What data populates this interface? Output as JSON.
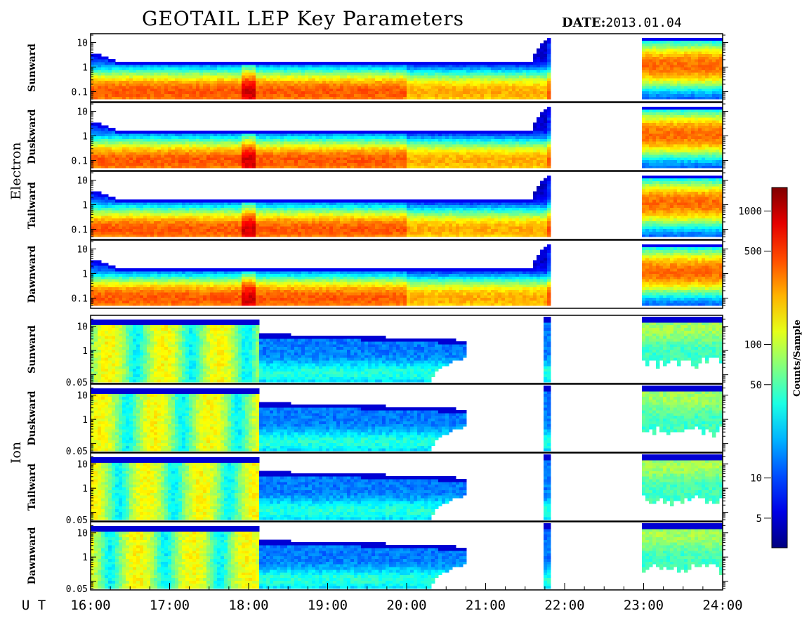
{
  "title": "GEOTAIL LEP Key Parameters",
  "date_label": "DATE:",
  "date_value": "2013.01.04",
  "chart_data": {
    "type": "heatmap",
    "x_axis": {
      "label": "U T",
      "range_hours": [
        16,
        24
      ],
      "ticks": [
        16,
        17,
        18,
        19,
        20,
        21,
        22,
        23,
        24
      ],
      "tick_labels": [
        "16:00",
        "17:00",
        "18:00",
        "19:00",
        "20:00",
        "21:00",
        "22:00",
        "23:00",
        "24:00"
      ]
    },
    "y_scale": "log",
    "groups": [
      {
        "name": "Electron",
        "y_range": [
          0.05,
          20
        ],
        "y_ticks": [
          0.1,
          1,
          10
        ],
        "y_tick_labels": [
          "0.1",
          "1",
          "10"
        ],
        "panels": [
          "Sunward",
          "Duskward",
          "Tailward",
          "Dawnward"
        ]
      },
      {
        "name": "Ion",
        "y_range": [
          0.05,
          25
        ],
        "y_ticks": [
          0.05,
          1,
          10
        ],
        "y_tick_labels": [
          "0.05",
          "1",
          "10"
        ],
        "panels": [
          "Sunward",
          "Duskward",
          "Tailward",
          "Dawnward"
        ]
      }
    ],
    "colorbar": {
      "label": "Counts/Sample",
      "scale": "log",
      "range": [
        3,
        1500
      ],
      "ticks": [
        5,
        10,
        50,
        100,
        500,
        1000
      ],
      "tick_labels": [
        "5",
        "10",
        "50",
        "100",
        "500",
        "1000"
      ]
    },
    "data_coverage": {
      "electron_segments_hours": [
        [
          16.0,
          21.8
        ],
        [
          23.0,
          24.0
        ]
      ],
      "ion_segments_hours": [
        [
          16.0,
          20.75
        ],
        [
          21.75,
          21.8
        ],
        [
          23.0,
          24.0
        ]
      ]
    },
    "features": {
      "electron_peak_energy": 0.1,
      "electron_upper_edge": 1.8,
      "ion_upper_edge_before_18_1": 18,
      "ion_upper_edge_after_18_1": 5,
      "intensity_enhancement_hours": [
        [
          17.9,
          18.1
        ]
      ]
    }
  }
}
